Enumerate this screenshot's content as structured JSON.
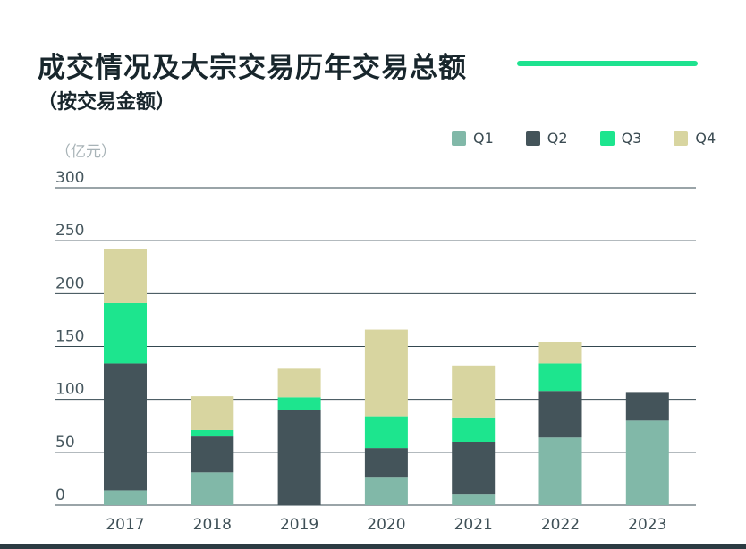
{
  "header": {
    "title": "成交情况及大宗交易历年交易总额",
    "subtitle": "（按交易金额）",
    "accent_color": "#1ee28f"
  },
  "chart_data": {
    "type": "bar",
    "stacked": true,
    "categories": [
      "2017",
      "2018",
      "2019",
      "2020",
      "2021",
      "2022",
      "2023"
    ],
    "series": [
      {
        "name": "Q1",
        "color": "#81b8a8",
        "values": [
          14,
          31,
          0,
          26,
          10,
          64,
          80
        ]
      },
      {
        "name": "Q2",
        "color": "#44545a",
        "values": [
          120,
          34,
          90,
          28,
          50,
          44,
          27
        ]
      },
      {
        "name": "Q3",
        "color": "#1de58e",
        "values": [
          57,
          6,
          12,
          30,
          23,
          26,
          0
        ]
      },
      {
        "name": "Q4",
        "color": "#d8d5a0",
        "values": [
          51,
          32,
          27,
          82,
          49,
          20,
          0
        ]
      }
    ],
    "yticks": [
      "0",
      "50",
      "100",
      "150",
      "200",
      "250",
      "300"
    ],
    "ylim": [
      0,
      300
    ],
    "ylabel": "（亿元）",
    "xlabel": "",
    "legend_position": "top-right",
    "grid": true
  }
}
